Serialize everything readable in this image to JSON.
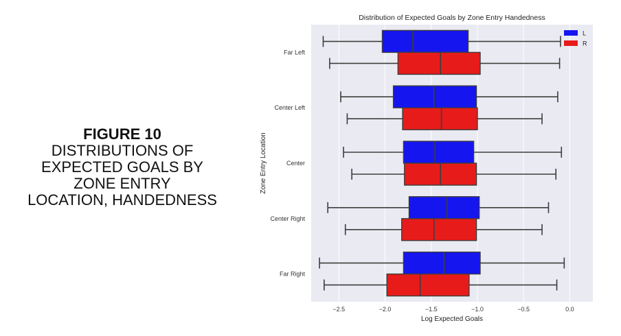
{
  "caption": {
    "figure": "FIGURE 10",
    "lines": [
      "DISTRIBUTIONS OF",
      "EXPECTED GOALS BY",
      "ZONE ENTRY",
      "LOCATION, HANDEDNESS"
    ]
  },
  "chart_data": {
    "type": "boxplot",
    "orientation": "horizontal",
    "title": "Distribution of Expected Goals by Zone Entry Handedness",
    "xlabel": "Log Expected Goals",
    "ylabel": "Zone Entry Location",
    "xlim": [
      -2.8,
      0.25
    ],
    "x_ticks": [
      -2.5,
      -2.0,
      -1.5,
      -1.0,
      -0.5,
      0.0
    ],
    "x_tick_labels": [
      "−2.5",
      "−2.0",
      "−1.5",
      "−1.0",
      "−0.5",
      "0.0"
    ],
    "categories": [
      "Far Left",
      "Center Left",
      "Center",
      "Center Right",
      "Far Right"
    ],
    "series": [
      {
        "name": "L",
        "color": "#1515f0",
        "boxes": [
          {
            "whislo": -2.67,
            "q1": -2.03,
            "med": -1.7,
            "q3": -1.1,
            "whishi": -0.1
          },
          {
            "whislo": -2.48,
            "q1": -1.91,
            "med": -1.47,
            "q3": -1.01,
            "whishi": -0.13
          },
          {
            "whislo": -2.45,
            "q1": -1.8,
            "med": -1.46,
            "q3": -1.04,
            "whishi": -0.09
          },
          {
            "whislo": -2.62,
            "q1": -1.74,
            "med": -1.33,
            "q3": -0.98,
            "whishi": -0.23
          },
          {
            "whislo": -2.71,
            "q1": -1.8,
            "med": -1.36,
            "q3": -0.97,
            "whishi": -0.06
          }
        ]
      },
      {
        "name": "R",
        "color": "#e81b1b",
        "boxes": [
          {
            "whislo": -2.6,
            "q1": -1.86,
            "med": -1.4,
            "q3": -0.97,
            "whishi": -0.11
          },
          {
            "whislo": -2.41,
            "q1": -1.81,
            "med": -1.39,
            "q3": -1.0,
            "whishi": -0.3
          },
          {
            "whislo": -2.36,
            "q1": -1.79,
            "med": -1.4,
            "q3": -1.01,
            "whishi": -0.15
          },
          {
            "whislo": -2.43,
            "q1": -1.82,
            "med": -1.47,
            "q3": -1.01,
            "whishi": -0.3
          },
          {
            "whislo": -2.66,
            "q1": -1.98,
            "med": -1.62,
            "q3": -1.09,
            "whishi": -0.14
          }
        ]
      }
    ],
    "legend": {
      "position": "top-right",
      "entries": [
        "L",
        "R"
      ]
    },
    "grid": true,
    "background": "#eaeaf2"
  }
}
